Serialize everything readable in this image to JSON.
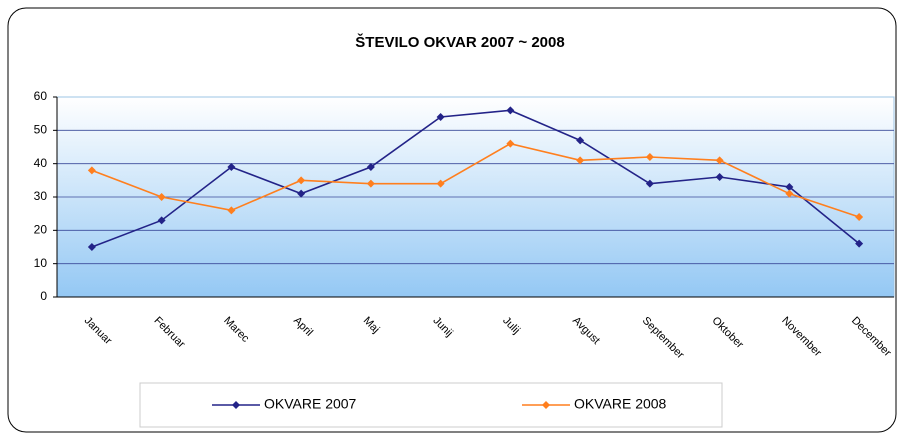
{
  "chart_data": {
    "type": "line",
    "title": "ŠTEVILO OKVAR 2007 ~ 2008",
    "categories": [
      "Januar",
      "Februar",
      "Marec",
      "April",
      "Maj",
      "Junij",
      "Julij",
      "Avgust",
      "September",
      "Oktober",
      "November",
      "December"
    ],
    "series": [
      {
        "name": "OKVARE 2007",
        "color": "#232388",
        "values": [
          15,
          23,
          39,
          31,
          39,
          54,
          56,
          47,
          34,
          36,
          33,
          16
        ]
      },
      {
        "name": "OKVARE 2008",
        "color": "#ff7f1e",
        "values": [
          38,
          30,
          26,
          35,
          34,
          34,
          46,
          41,
          42,
          41,
          31,
          24
        ]
      }
    ],
    "ylim": [
      0,
      60
    ],
    "yticks": [
      0,
      10,
      20,
      30,
      40,
      50,
      60
    ],
    "grid": true,
    "legend": "bottom"
  }
}
